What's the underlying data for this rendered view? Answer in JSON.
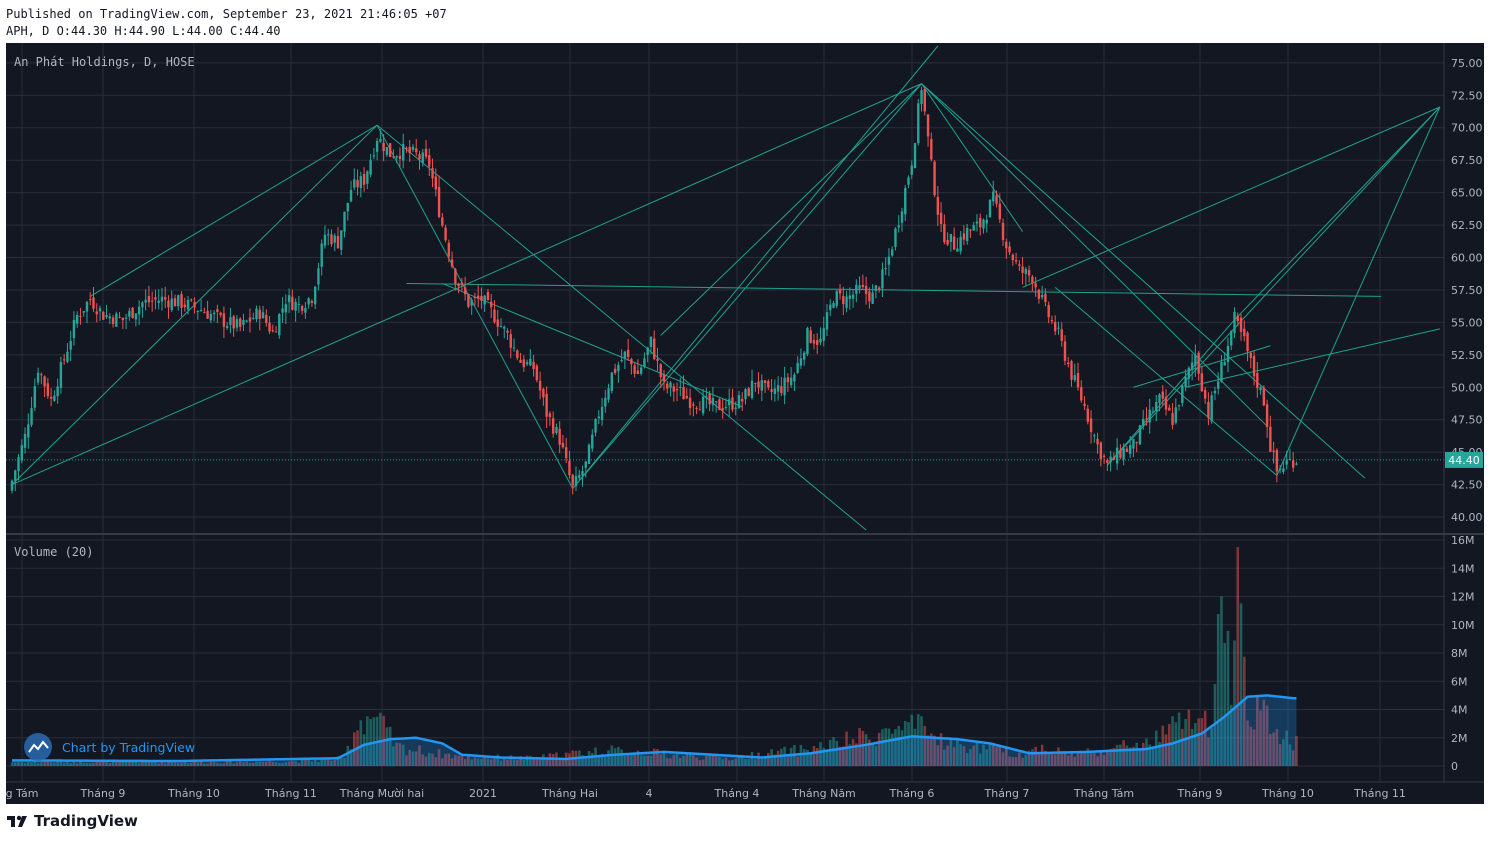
{
  "header": {
    "published": "Published on TradingView.com, September 23, 2021 21:46:05 +07",
    "ohlc": "APH, D O:44.30 H:44.90 L:44.00 C:44.40"
  },
  "brand": {
    "footer_logo_text": "TradingView",
    "watermark_text": "Chart by TradingView"
  },
  "colors": {
    "background": "#131722",
    "grid": "#2a2e39",
    "up": "#26a69a",
    "down": "#ef5350",
    "drawing": "#1fa28f",
    "volume_ma": "#2196f3",
    "last_price": "#26a69a",
    "text": "#b2b5be"
  },
  "chart_data": [
    {
      "type": "candlestick",
      "title": "An Phát Holdings, D, HOSE",
      "symbol": "APH",
      "exchange": "HOSE",
      "interval": "D",
      "ylim": [
        39,
        76.3
      ],
      "y_ticks": [
        "75.00",
        "72.50",
        "70.00",
        "67.50",
        "65.00",
        "62.50",
        "60.00",
        "57.50",
        "55.00",
        "52.50",
        "50.00",
        "47.50",
        "45.00",
        "42.50",
        "40.00"
      ],
      "x_ticks": [
        "g Tám",
        "Tháng 9",
        "Tháng 10",
        "Tháng 11",
        "Tháng Mười hai",
        "2021",
        "Tháng Hai",
        "4",
        "Tháng 4",
        "Tháng Năm",
        "Tháng 6",
        "Tháng 7",
        "Tháng Tám",
        "Tháng 9",
        "Tháng 10",
        "Tháng 11"
      ],
      "last_price": "44.40",
      "grid": true,
      "close_path": [
        [
          0,
          42.8
        ],
        [
          4,
          46.2
        ],
        [
          8,
          51.5
        ],
        [
          12,
          49.0
        ],
        [
          16,
          52.2
        ],
        [
          20,
          55.5
        ],
        [
          24,
          56.8
        ],
        [
          28,
          55.6
        ],
        [
          34,
          55.2
        ],
        [
          40,
          56.5
        ],
        [
          46,
          56.8
        ],
        [
          52,
          56.5
        ],
        [
          58,
          56.0
        ],
        [
          64,
          55.2
        ],
        [
          70,
          54.6
        ],
        [
          76,
          55.8
        ],
        [
          80,
          54.2
        ],
        [
          84,
          56.8
        ],
        [
          88,
          56.3
        ],
        [
          92,
          57.0
        ],
        [
          96,
          61.8
        ],
        [
          100,
          61.2
        ],
        [
          104,
          65.3
        ],
        [
          108,
          66.0
        ],
        [
          112,
          69.3
        ],
        [
          116,
          68.0
        ],
        [
          120,
          68.2
        ],
        [
          124,
          67.9
        ],
        [
          128,
          67.2
        ],
        [
          132,
          62.5
        ],
        [
          136,
          58.5
        ],
        [
          140,
          56.5
        ],
        [
          144,
          56.8
        ],
        [
          148,
          55.5
        ],
        [
          152,
          54.0
        ],
        [
          156,
          52.0
        ],
        [
          160,
          51.5
        ],
        [
          164,
          48.0
        ],
        [
          168,
          46.0
        ],
        [
          172,
          42.2
        ],
        [
          176,
          44.0
        ],
        [
          180,
          48.0
        ],
        [
          184,
          51.0
        ],
        [
          188,
          52.5
        ],
        [
          192,
          51.0
        ],
        [
          196,
          53.5
        ],
        [
          200,
          50.0
        ],
        [
          204,
          49.8
        ],
        [
          208,
          49.0
        ],
        [
          212,
          48.8
        ],
        [
          216,
          48.5
        ],
        [
          220,
          48.7
        ],
        [
          224,
          49.0
        ],
        [
          228,
          50.5
        ],
        [
          232,
          49.5
        ],
        [
          236,
          50.0
        ],
        [
          240,
          51.0
        ],
        [
          244,
          54.0
        ],
        [
          248,
          53.5
        ],
        [
          252,
          57.0
        ],
        [
          256,
          56.8
        ],
        [
          260,
          57.5
        ],
        [
          264,
          57.0
        ],
        [
          268,
          59.0
        ],
        [
          272,
          63.0
        ],
        [
          276,
          67.5
        ],
        [
          279,
          73.2
        ],
        [
          282,
          67.0
        ],
        [
          285,
          62.0
        ],
        [
          289,
          61.0
        ],
        [
          293,
          62.0
        ],
        [
          297,
          62.5
        ],
        [
          301,
          64.5
        ],
        [
          305,
          61.0
        ],
        [
          309,
          59.0
        ],
        [
          313,
          58.5
        ],
        [
          317,
          56.0
        ],
        [
          321,
          54.0
        ],
        [
          325,
          51.0
        ],
        [
          329,
          48.5
        ],
        [
          333,
          45.5
        ],
        [
          336,
          44.0
        ],
        [
          340,
          45.0
        ],
        [
          344,
          45.5
        ],
        [
          348,
          47.5
        ],
        [
          352,
          49.0
        ],
        [
          356,
          47.5
        ],
        [
          360,
          50.5
        ],
        [
          363,
          52.5
        ],
        [
          367,
          48.0
        ],
        [
          371,
          51.5
        ],
        [
          375,
          55.2
        ],
        [
          378,
          53.5
        ],
        [
          381,
          51.0
        ],
        [
          384,
          49.0
        ],
        [
          386,
          45.5
        ],
        [
          388,
          43.5
        ],
        [
          391,
          44.2
        ],
        [
          393,
          44.4
        ]
      ]
    },
    {
      "type": "bar",
      "title": "Volume (20)",
      "y_ticks": [
        "16M",
        "14M",
        "12M",
        "10M",
        "8M",
        "6M",
        "4M",
        "2M",
        "0"
      ],
      "ylim": [
        0,
        16
      ],
      "unit": "M",
      "volume_path": [
        [
          0,
          0.3
        ],
        [
          30,
          0.35
        ],
        [
          60,
          0.3
        ],
        [
          90,
          0.4
        ],
        [
          102,
          0.6
        ],
        [
          106,
          3.5
        ],
        [
          110,
          4.0
        ],
        [
          114,
          3.0
        ],
        [
          118,
          1.5
        ],
        [
          130,
          1.0
        ],
        [
          140,
          0.7
        ],
        [
          160,
          0.6
        ],
        [
          180,
          1.2
        ],
        [
          195,
          1.1
        ],
        [
          200,
          0.9
        ],
        [
          220,
          0.6
        ],
        [
          240,
          1.2
        ],
        [
          250,
          1.6
        ],
        [
          260,
          2.2
        ],
        [
          270,
          2.8
        ],
        [
          278,
          3.0
        ],
        [
          284,
          2.2
        ],
        [
          290,
          1.6
        ],
        [
          300,
          1.4
        ],
        [
          310,
          0.9
        ],
        [
          316,
          1.5
        ],
        [
          320,
          1.2
        ],
        [
          325,
          0.9
        ],
        [
          330,
          1.1
        ],
        [
          340,
          1.4
        ],
        [
          344,
          1.9
        ],
        [
          348,
          1.6
        ],
        [
          353,
          2.5
        ],
        [
          357,
          3.2
        ],
        [
          363,
          4.0
        ],
        [
          368,
          2.6
        ],
        [
          371,
          12.0
        ],
        [
          374,
          7.0
        ],
        [
          376,
          15.5
        ],
        [
          379,
          5.0
        ],
        [
          383,
          4.2
        ],
        [
          387,
          3.0
        ],
        [
          390,
          2.4
        ],
        [
          393,
          2.0
        ]
      ],
      "ma_path": [
        [
          0,
          0.4
        ],
        [
          50,
          0.35
        ],
        [
          100,
          0.55
        ],
        [
          108,
          1.5
        ],
        [
          116,
          1.9
        ],
        [
          124,
          2.0
        ],
        [
          132,
          1.6
        ],
        [
          138,
          0.8
        ],
        [
          150,
          0.6
        ],
        [
          170,
          0.5
        ],
        [
          185,
          0.8
        ],
        [
          200,
          1.0
        ],
        [
          215,
          0.8
        ],
        [
          230,
          0.6
        ],
        [
          245,
          0.9
        ],
        [
          262,
          1.5
        ],
        [
          276,
          2.1
        ],
        [
          290,
          1.9
        ],
        [
          300,
          1.6
        ],
        [
          312,
          0.9
        ],
        [
          330,
          1.0
        ],
        [
          348,
          1.2
        ],
        [
          356,
          1.6
        ],
        [
          365,
          2.3
        ],
        [
          372,
          3.5
        ],
        [
          379,
          4.9
        ],
        [
          385,
          5.0
        ],
        [
          393,
          4.8
        ]
      ]
    }
  ]
}
